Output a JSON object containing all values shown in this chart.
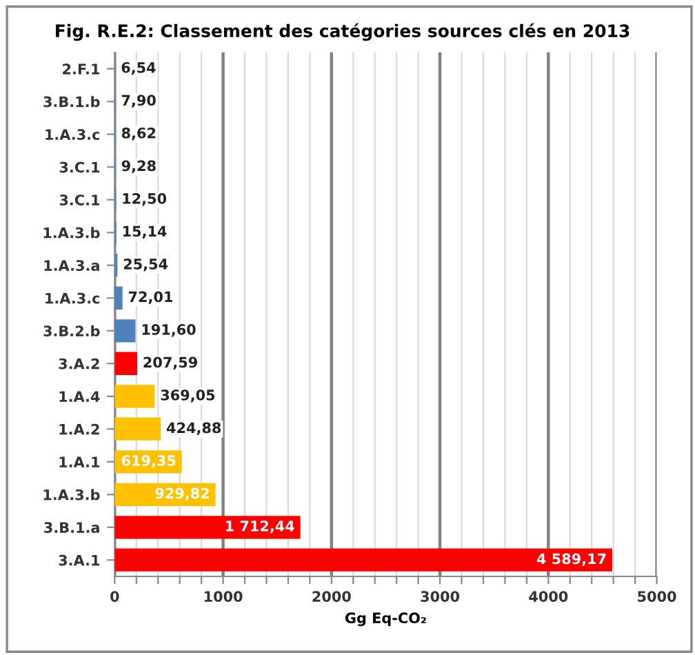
{
  "chart_data": {
    "type": "bar",
    "orientation": "horizontal",
    "title": "Fig. R.E.2: Classement des catégories sources clés en 2013",
    "xlabel": "Gg Eq-CO₂",
    "categories": [
      "2.F.1",
      "3.B.1.b",
      "1.A.3.c",
      "3.C.1",
      "3.C.1",
      "1.A.3.b",
      "1.A.3.a",
      "1.A.3.c",
      "3.B.2.b",
      "3.A.2",
      "1.A.4",
      "1.A.2",
      "1.A.1",
      "1.A.3.b",
      "3.B.1.a",
      "3.A.1"
    ],
    "values": [
      6.54,
      7.9,
      8.62,
      9.28,
      12.5,
      15.14,
      25.54,
      72.01,
      191.6,
      207.59,
      369.05,
      424.88,
      619.35,
      929.82,
      1712.44,
      4589.17
    ],
    "value_labels": [
      "6,54",
      "7,90",
      "8,62",
      "9,28",
      "12,50",
      "15,14",
      "25,54",
      "72,01",
      "191,60",
      "207,59",
      "369,05",
      "424,88",
      "619,35",
      "929,82",
      "1 712,44",
      "4 589,17"
    ],
    "colors": [
      "#4f81bd",
      "#4f81bd",
      "#4f81bd",
      "#4f81bd",
      "#4f81bd",
      "#4f81bd",
      "#4f81bd",
      "#4f81bd",
      "#4f81bd",
      "#ff0000",
      "#ffc000",
      "#ffc000",
      "#ffc000",
      "#ffc000",
      "#ff0000",
      "#ff0000"
    ],
    "xlim": [
      0,
      5000
    ],
    "xticks": [
      0,
      {
        "value": 200,
        "label": null
      },
      {
        "value": 400,
        "label": null
      },
      {
        "value": 600,
        "label": null
      },
      {
        "value": 800,
        "label": null
      },
      1000,
      {
        "value": 1200,
        "label": null
      },
      {
        "value": 1400,
        "label": null
      },
      {
        "value": 1600,
        "label": null
      },
      {
        "value": 1800,
        "label": null
      },
      2000,
      {
        "value": 2200,
        "label": null
      },
      {
        "value": 2400,
        "label": null
      },
      {
        "value": 2600,
        "label": null
      },
      {
        "value": 2800,
        "label": null
      },
      3000,
      {
        "value": 3200,
        "label": null
      },
      {
        "value": 3400,
        "label": null
      },
      {
        "value": 3600,
        "label": null
      },
      {
        "value": 3800,
        "label": null
      },
      4000,
      {
        "value": 4200,
        "label": null
      },
      {
        "value": 4400,
        "label": null
      },
      {
        "value": 4600,
        "label": null
      },
      {
        "value": 4800,
        "label": null
      },
      5000
    ],
    "grid": "x"
  }
}
